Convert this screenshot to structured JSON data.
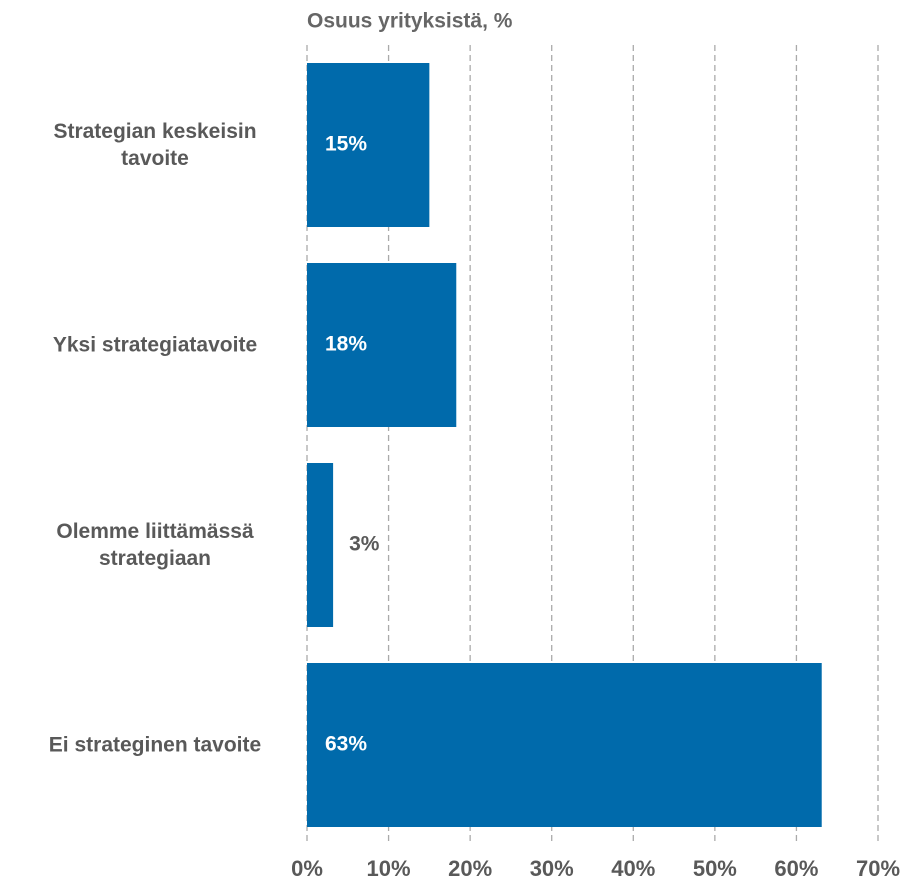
{
  "chart_data": {
    "type": "bar",
    "orientation": "horizontal",
    "title": "Osuus yrityksistä, %",
    "categories": [
      "Strategian keskeisin tavoite",
      "Yksi strategiatavoite",
      "Olemme liittämässä strategiaan",
      "Ei strateginen tavoite"
    ],
    "values": [
      15,
      18.3,
      3.2,
      63.1
    ],
    "value_labels": [
      "15%",
      "18%",
      "3%",
      "63%"
    ],
    "color": "#006aab",
    "xlim": [
      0,
      70
    ],
    "xticks": [
      {
        "value": 0,
        "label": "0%"
      },
      {
        "value": 10,
        "label": "10%"
      },
      {
        "value": 20,
        "label": "20%"
      },
      {
        "value": 30,
        "label": "30%"
      },
      {
        "value": 40,
        "label": "40%"
      },
      {
        "value": 50,
        "label": "50%"
      },
      {
        "value": 60,
        "label": "60%"
      },
      {
        "value": 70,
        "label": "70%"
      }
    ],
    "grid": true
  }
}
